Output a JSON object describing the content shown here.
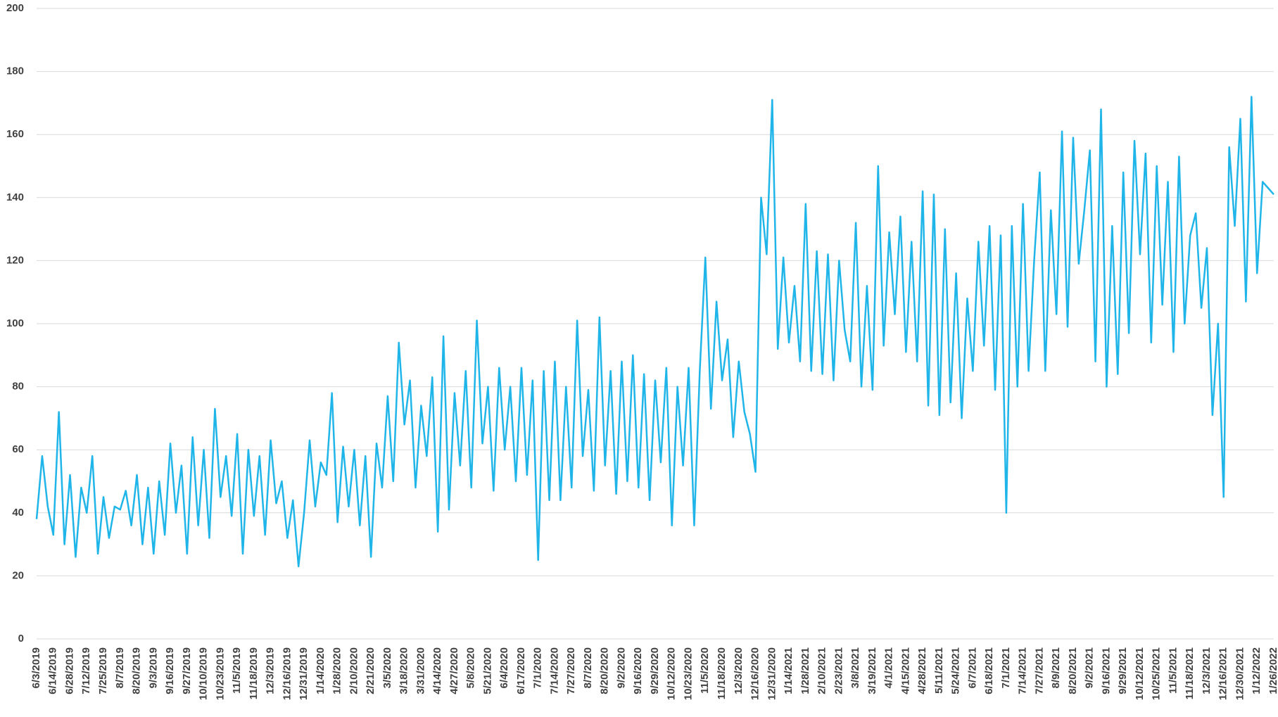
{
  "chart_data": {
    "type": "line",
    "categories": [
      "6/3/2019",
      null,
      null,
      "6/14/2019",
      null,
      null,
      "6/28/2019",
      null,
      null,
      "7/12/2019",
      null,
      null,
      "7/25/2019",
      null,
      null,
      "8/7/2019",
      null,
      null,
      "8/20/2019",
      null,
      null,
      "9/3/2019",
      null,
      null,
      "9/16/2019",
      null,
      null,
      "9/27/2019",
      null,
      null,
      "10/10/2019",
      null,
      null,
      "10/23/2019",
      null,
      null,
      "11/5/2019",
      null,
      null,
      "11/18/2019",
      null,
      null,
      "12/3/2019",
      null,
      null,
      "12/16/2019",
      null,
      null,
      "12/31/2019",
      null,
      null,
      "1/14/2020",
      null,
      null,
      "1/28/2020",
      null,
      null,
      "2/10/2020",
      null,
      null,
      "2/21/2020",
      null,
      null,
      "3/5/2020",
      null,
      null,
      "3/18/2020",
      null,
      null,
      "3/31/2020",
      null,
      null,
      "4/14/2020",
      null,
      null,
      "4/27/2020",
      null,
      null,
      "5/8/2020",
      null,
      null,
      "5/21/2020",
      null,
      null,
      "6/4/2020",
      null,
      null,
      "6/17/2020",
      null,
      null,
      "7/1/2020",
      null,
      null,
      "7/14/2020",
      null,
      null,
      "7/27/2020",
      null,
      null,
      "8/7/2020",
      null,
      null,
      "8/20/2020",
      null,
      null,
      "9/2/2020",
      null,
      null,
      "9/16/2020",
      null,
      null,
      "9/29/2020",
      null,
      null,
      "10/12/2020",
      null,
      null,
      "10/23/2020",
      null,
      null,
      "11/5/2020",
      null,
      null,
      "11/18/2020",
      null,
      null,
      "12/3/2020",
      null,
      null,
      "12/16/2020",
      null,
      null,
      "12/31/2020",
      null,
      null,
      "1/14/2021",
      null,
      null,
      "1/28/2021",
      null,
      null,
      "2/10/2021",
      null,
      null,
      "2/23/2021",
      null,
      null,
      "3/8/2021",
      null,
      null,
      "3/19/2021",
      null,
      null,
      "4/1/2021",
      null,
      null,
      "4/15/2021",
      null,
      null,
      "4/28/2021",
      null,
      null,
      "5/11/2021",
      null,
      null,
      "5/24/2021",
      null,
      null,
      "6/7/2021",
      null,
      null,
      "6/18/2021",
      null,
      null,
      "7/1/2021",
      null,
      null,
      "7/14/2021",
      null,
      null,
      "7/27/2021",
      null,
      null,
      "8/9/2021",
      null,
      null,
      "8/20/2021",
      null,
      null,
      "9/2/2021",
      null,
      null,
      "9/16/2021",
      null,
      null,
      "9/29/2021",
      null,
      null,
      "10/12/2021",
      null,
      null,
      "10/25/2021",
      null,
      null,
      "11/5/2021",
      null,
      null,
      "11/18/2021",
      null,
      null,
      "12/3/2021",
      null,
      null,
      "12/16/2021",
      null,
      null,
      "12/30/2021",
      null,
      null,
      "1/12/2022",
      null,
      null,
      "1/26/2022"
    ],
    "values": [
      38,
      58,
      42,
      33,
      72,
      30,
      52,
      26,
      48,
      40,
      58,
      27,
      45,
      32,
      42,
      41,
      47,
      36,
      52,
      30,
      48,
      27,
      50,
      33,
      62,
      40,
      55,
      27,
      64,
      36,
      60,
      32,
      73,
      45,
      58,
      39,
      65,
      27,
      60,
      39,
      58,
      33,
      63,
      43,
      50,
      32,
      44,
      23,
      40,
      63,
      42,
      56,
      52,
      78,
      37,
      61,
      42,
      60,
      36,
      58,
      26,
      62,
      48,
      77,
      50,
      94,
      68,
      82,
      48,
      74,
      58,
      83,
      34,
      96,
      41,
      78,
      55,
      85,
      48,
      101,
      62,
      80,
      47,
      86,
      60,
      80,
      50,
      86,
      52,
      82,
      25,
      85,
      44,
      88,
      44,
      80,
      48,
      101,
      58,
      79,
      47,
      102,
      55,
      85,
      46,
      88,
      50,
      90,
      48,
      84,
      44,
      82,
      56,
      86,
      36,
      80,
      55,
      86,
      36,
      85,
      121,
      73,
      107,
      82,
      95,
      64,
      88,
      72,
      65,
      53,
      140,
      122,
      171,
      92,
      121,
      94,
      112,
      88,
      138,
      85,
      123,
      84,
      122,
      82,
      120,
      98,
      88,
      132,
      80,
      112,
      79,
      150,
      93,
      129,
      103,
      134,
      91,
      126,
      88,
      142,
      74,
      141,
      71,
      130,
      75,
      116,
      70,
      108,
      85,
      126,
      93,
      131,
      79,
      128,
      40,
      131,
      80,
      138,
      85,
      120,
      148,
      85,
      136,
      103,
      161,
      99,
      159,
      119,
      136,
      155,
      88,
      168,
      80,
      131,
      84,
      148,
      97,
      158,
      122,
      154,
      94,
      150,
      106,
      145,
      91,
      153,
      100,
      128,
      135,
      105,
      124,
      71,
      100,
      45,
      156,
      131,
      165,
      107,
      172,
      116,
      145,
      143,
      141
    ],
    "color": "#1fb5e9",
    "ylim": [
      0,
      200
    ],
    "yticks": [
      0,
      20,
      40,
      60,
      80,
      100,
      120,
      140,
      160,
      180,
      200
    ],
    "grid": true
  }
}
